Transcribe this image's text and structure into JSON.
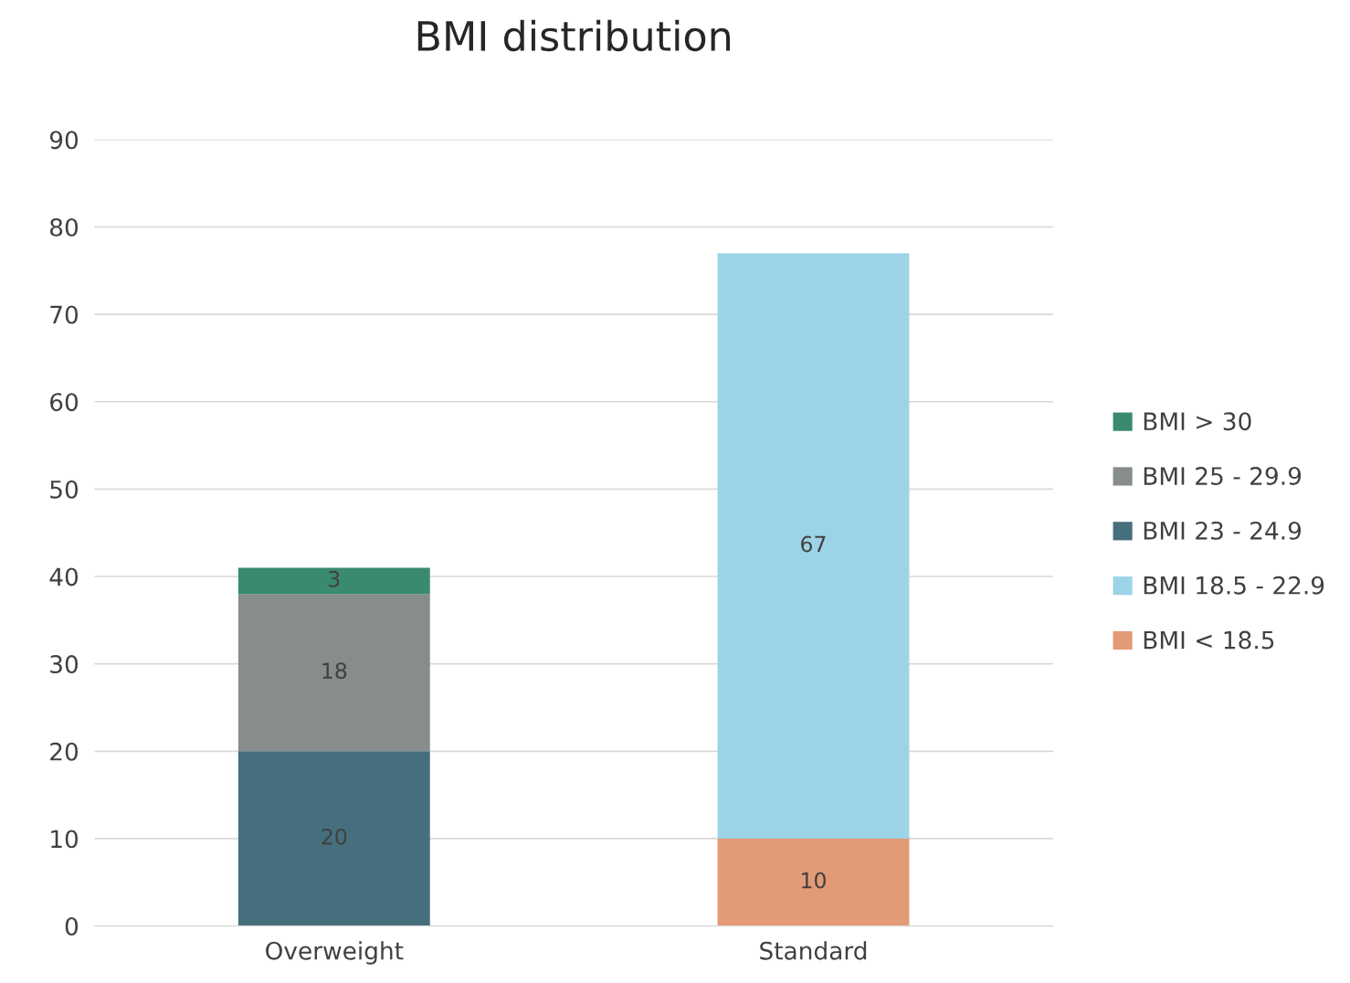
{
  "chart_data": {
    "type": "bar",
    "title": "BMI distribution",
    "stacked": true,
    "categories": [
      "Overweight",
      "Standard"
    ],
    "series": [
      {
        "name": "BMI < 18.5",
        "color": "#e39a77",
        "values": [
          null,
          10
        ]
      },
      {
        "name": "BMI 18.5 - 22.9",
        "color": "#9dd3e6",
        "values": [
          null,
          67
        ]
      },
      {
        "name": "BMI 23 - 24.9",
        "color": "#466f7d",
        "values": [
          20,
          null
        ]
      },
      {
        "name": "BMI 25 - 29.9",
        "color": "#878c8c",
        "values": [
          18,
          null
        ]
      },
      {
        "name": "BMI > 30",
        "color": "#3a8a6f",
        "values": [
          3,
          null
        ]
      }
    ],
    "ylim": [
      0,
      90
    ],
    "yticks": [
      0,
      10,
      20,
      30,
      40,
      50,
      60,
      70,
      80,
      90
    ],
    "grid": "y",
    "legend": "right",
    "data_labels": true
  }
}
